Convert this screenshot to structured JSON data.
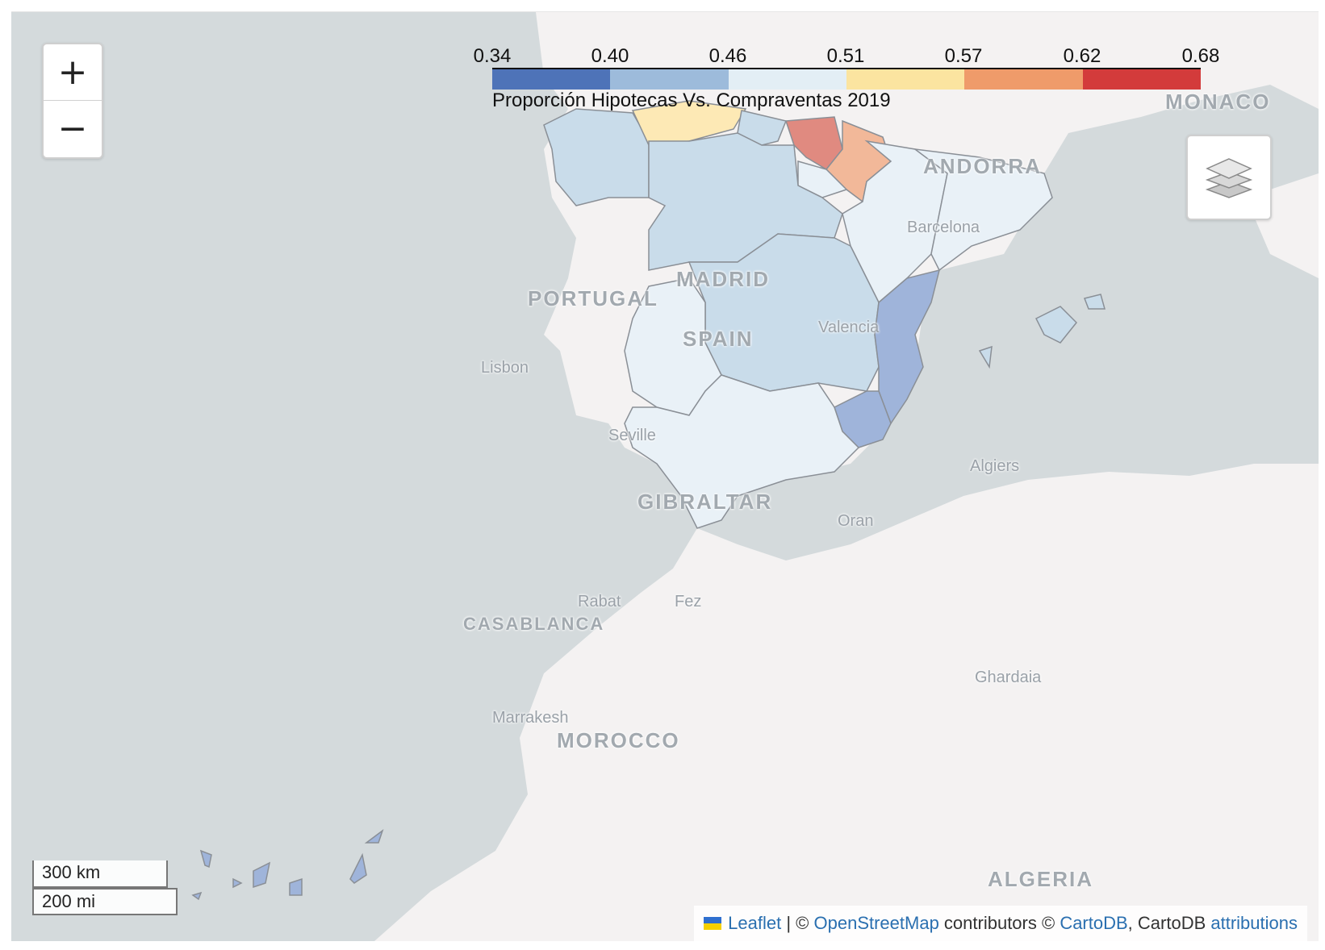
{
  "zoom": {
    "in_label": "+",
    "out_label": "−"
  },
  "legend": {
    "ticks": [
      "0.34",
      "0.40",
      "0.46",
      "0.51",
      "0.57",
      "0.62",
      "0.68"
    ],
    "colors": [
      "#4e73b8",
      "#9dbbdb",
      "#e3eef5",
      "#fbe4a0",
      "#ef9b6a",
      "#d33b3b"
    ],
    "caption": "Proporción Hipotecas Vs. Compraventas 2019"
  },
  "labels": {
    "monaco": "MONACO",
    "andorra": "ANDORRA",
    "barcelona": "Barcelona",
    "madrid": "MADRID",
    "portugal": "PORTUGAL",
    "spain": "SPAIN",
    "valencia": "Valencia",
    "lisbon": "Lisbon",
    "seville": "Seville",
    "gibraltar": "GIBRALTAR",
    "algiers": "Algiers",
    "oran": "Oran",
    "rabat": "Rabat",
    "fez": "Fez",
    "casablanca": "CASABLANCA",
    "ghardaia": "Ghardaia",
    "marrakesh": "Marrakesh",
    "morocco": "MOROCCO",
    "algeria": "ALGERIA"
  },
  "scale": {
    "km": "300 km",
    "mi": "200 mi"
  },
  "attribution": {
    "leaflet": "Leaflet",
    "sep": " | © ",
    "osm": "OpenStreetMap",
    "contrib": " contributors © ",
    "carto": "CartoDB",
    "carto2": ", CartoDB ",
    "attr": "attributions"
  },
  "colors": {
    "sea": "#d4dadc",
    "land": "#f4f2f2",
    "light_blue": "#c9dcea",
    "very_light": "#e9f1f7",
    "mid_blue": "#9fb4da",
    "yellow": "#fde9b5",
    "red": "#e08a80",
    "salmon": "#f2b899"
  }
}
